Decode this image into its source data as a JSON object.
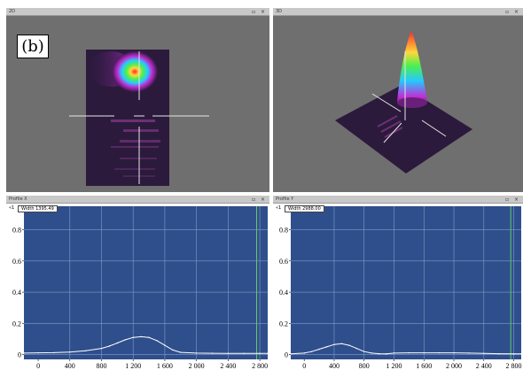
{
  "panel_label": "(b)",
  "panes": {
    "top_left": {
      "title": "2D",
      "controls": "▫ ×"
    },
    "top_right": {
      "title": "3D",
      "controls": "▫ ×"
    },
    "bottom_left": {
      "title": "Profile X",
      "controls": "▫ ×",
      "width_label": "Width 1395.49",
      "marker": "«1"
    },
    "bottom_right": {
      "title": "Profile Y",
      "controls": "▫ ×",
      "width_label": "Width 2988.00",
      "marker": "«1"
    }
  },
  "colors": {
    "plot_background": "#2f4f8c",
    "grid": "#7f9dc8",
    "trace": "#ffffff",
    "marker_line": "#63c866",
    "view_background": "#6f6f6f"
  },
  "chart_data": [
    {
      "type": "line",
      "title": "",
      "xlabel": "",
      "ylabel": "",
      "xlim": [
        -180,
        2900
      ],
      "ylim": [
        -0.03,
        0.95
      ],
      "xticks": [
        0,
        400,
        800,
        1200,
        1600,
        2000,
        2400,
        2800
      ],
      "xtick_labels": [
        "0",
        "400",
        "800",
        "1 200",
        "1 600",
        "2 000",
        "2 400",
        "2 800"
      ],
      "yticks": [
        0,
        0.2,
        0.4,
        0.6,
        0.8
      ],
      "ytick_labels": [
        "0",
        "0.2",
        "0.4",
        "0.6",
        "0.8"
      ],
      "grid": true,
      "marker_x": 2760,
      "series": [
        {
          "x": [
            -180,
            0,
            200,
            400,
            600,
            800,
            900,
            1000,
            1100,
            1200,
            1300,
            1400,
            1500,
            1600,
            1700,
            1800,
            2000,
            2200,
            2400,
            2600,
            2800,
            2900
          ],
          "values": [
            0.01,
            0.012,
            0.013,
            0.017,
            0.025,
            0.04,
            0.055,
            0.075,
            0.095,
            0.11,
            0.115,
            0.11,
            0.09,
            0.06,
            0.03,
            0.015,
            0.01,
            0.009,
            0.008,
            0.008,
            0.008,
            0.008
          ]
        }
      ]
    },
    {
      "type": "line",
      "title": "",
      "xlabel": "",
      "ylabel": "",
      "xlim": [
        -180,
        2900
      ],
      "ylim": [
        -0.03,
        0.95
      ],
      "xticks": [
        0,
        400,
        800,
        1200,
        1600,
        2000,
        2400,
        2800
      ],
      "xtick_labels": [
        "0",
        "400",
        "800",
        "1 200",
        "1 600",
        "2 000",
        "2 400",
        "2 800"
      ],
      "yticks": [
        0,
        0.2,
        0.4,
        0.6,
        0.8
      ],
      "ytick_labels": [
        "0",
        "0.2",
        "0.4",
        "0.6",
        "0.8"
      ],
      "grid": true,
      "marker_x": 2760,
      "series": [
        {
          "x": [
            -180,
            0,
            100,
            200,
            300,
            400,
            500,
            600,
            700,
            800,
            900,
            1000,
            1100,
            1200,
            1400,
            1600,
            1800,
            2000,
            2200,
            2400,
            2600,
            2800,
            2900
          ],
          "values": [
            0.005,
            0.01,
            0.02,
            0.035,
            0.05,
            0.065,
            0.07,
            0.06,
            0.04,
            0.02,
            0.01,
            0.006,
            0.005,
            0.01,
            0.012,
            0.012,
            0.012,
            0.012,
            0.01,
            0.008,
            0.006,
            0.005,
            0.005
          ]
        }
      ]
    }
  ]
}
